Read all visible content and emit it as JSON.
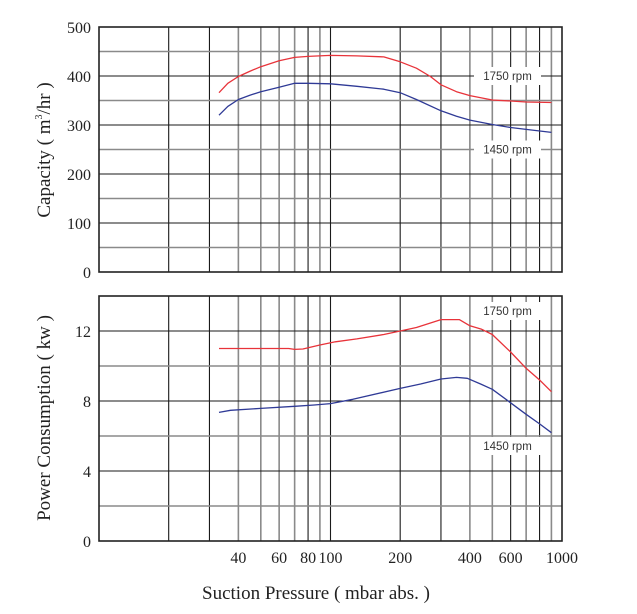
{
  "chart_data": [
    {
      "type": "line",
      "title": "",
      "xlabel": "Suction Pressure ( mbar abs. )",
      "ylabel_prefix": "Capacity ( m",
      "ylabel_sup": "3",
      "ylabel_suffix": "/hr )",
      "xscale": "log",
      "xlim": [
        10,
        1000
      ],
      "ylim": [
        0,
        500
      ],
      "yticks": [
        0,
        100,
        200,
        300,
        400,
        500
      ],
      "ytick_labels": [
        "0",
        "100",
        "200",
        "300",
        "400",
        "500"
      ],
      "ygrid_step": 50,
      "grid": true,
      "series": [
        {
          "name": "1750 rpm",
          "color": "#e8333a",
          "x": [
            33,
            36,
            40,
            45,
            50,
            60,
            70,
            80,
            100,
            130,
            170,
            200,
            235,
            270,
            300,
            350,
            400,
            500,
            600,
            700,
            900
          ],
          "y": [
            366,
            385,
            399,
            410,
            419,
            431,
            438,
            440,
            442,
            441,
            439,
            429,
            416,
            399,
            382,
            368,
            360,
            351,
            349,
            347,
            346
          ]
        },
        {
          "name": "1450 rpm",
          "color": "#2f3a96",
          "x": [
            33,
            36,
            40,
            45,
            50,
            60,
            70,
            80,
            100,
            130,
            170,
            200,
            235,
            300,
            350,
            400,
            500,
            600,
            700,
            900
          ],
          "y": [
            320,
            338,
            352,
            361,
            368,
            377,
            385,
            385,
            384,
            379,
            373,
            366,
            352,
            329,
            318,
            310,
            301,
            295,
            291,
            285
          ]
        }
      ],
      "annotations": [
        "1750 rpm",
        "1450 rpm"
      ]
    },
    {
      "type": "line",
      "title": "",
      "xlabel": "Suction Pressure ( mbar abs. )",
      "ylabel": "Power Consumption ( kw )",
      "xscale": "log",
      "xlim": [
        10,
        1000
      ],
      "ylim": [
        0,
        14
      ],
      "yticks": [
        0,
        4,
        8,
        12
      ],
      "ytick_labels": [
        "0",
        "4",
        "8",
        "12"
      ],
      "ygrid_step": 2,
      "grid": true,
      "xticks": [
        40,
        60,
        80,
        100,
        200,
        400,
        600,
        1000
      ],
      "xtick_labels": [
        "40",
        "60",
        "80",
        "100",
        "200",
        "400",
        "600",
        "1000"
      ],
      "series": [
        {
          "name": "1750 rpm",
          "color": "#e8333a",
          "x": [
            33,
            40,
            50,
            60,
            66,
            70,
            76,
            90,
            105,
            130,
            170,
            200,
            235,
            300,
            360,
            400,
            450,
            500,
            600,
            700,
            800,
            900
          ],
          "y": [
            11.0,
            11.0,
            11.0,
            11.0,
            11.0,
            10.95,
            10.97,
            11.2,
            11.38,
            11.55,
            11.8,
            12.0,
            12.2,
            12.65,
            12.65,
            12.3,
            12.1,
            11.8,
            10.8,
            9.87,
            9.2,
            8.53
          ]
        },
        {
          "name": "1450 rpm",
          "color": "#2f3a96",
          "x": [
            33,
            37,
            50,
            70,
            85,
            100,
            125,
            200,
            245,
            300,
            350,
            390,
            445,
            500,
            600,
            700,
            800,
            900
          ],
          "y": [
            7.35,
            7.47,
            7.58,
            7.7,
            7.77,
            7.85,
            8.1,
            8.72,
            8.97,
            9.26,
            9.35,
            9.3,
            8.97,
            8.67,
            7.9,
            7.24,
            6.69,
            6.19
          ]
        }
      ],
      "annotations": [
        "1750 rpm",
        "1450 rpm"
      ]
    }
  ]
}
